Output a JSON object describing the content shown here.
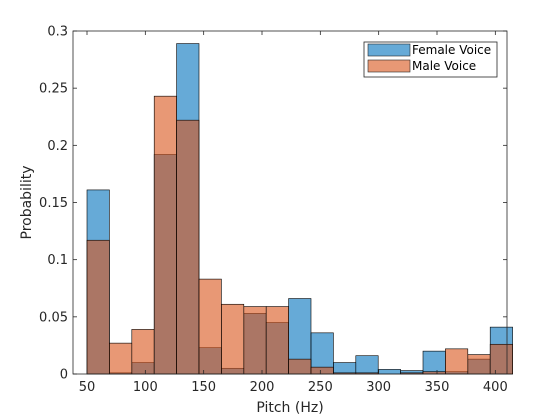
{
  "chart_data": {
    "type": "bar",
    "title": "",
    "xlabel": "Pitch (Hz)",
    "ylabel": "Probability",
    "xlim": [
      38,
      410
    ],
    "ylim": [
      0,
      0.3
    ],
    "xticks": [
      50,
      100,
      150,
      200,
      250,
      300,
      350,
      400
    ],
    "yticks": [
      0,
      0.05,
      0.1,
      0.15,
      0.2,
      0.25,
      0.3
    ],
    "ytick_labels": [
      "0",
      "0.05",
      "0.1",
      "0.15",
      "0.2",
      "0.25",
      "0.3"
    ],
    "grid": false,
    "legend_position": "top-right",
    "bin_edges": [
      50,
      69.2,
      88.4,
      107.6,
      126.8,
      146,
      165.2,
      184.4,
      203.6,
      222.8,
      242,
      261.2,
      280.4,
      299.6,
      318.8,
      338,
      357.2,
      376.4,
      395.6
    ],
    "series": [
      {
        "name": "Female Voice",
        "color": "#0072BD",
        "values": [
          0.161,
          0.001,
          0.01,
          0.192,
          0.289,
          0.023,
          0.005,
          0.053,
          0.045,
          0.066,
          0.036,
          0.01,
          0.016,
          0.004,
          0.003,
          0.02,
          0.002,
          0.013,
          0.041
        ]
      },
      {
        "name": "Male Voice",
        "color": "#D95319",
        "values": [
          0.117,
          0.027,
          0.039,
          0.243,
          0.222,
          0.083,
          0.061,
          0.059,
          0.059,
          0.013,
          0.006,
          0.001,
          0.001,
          0.0,
          0.001,
          0.002,
          0.022,
          0.017,
          0.026
        ]
      }
    ]
  }
}
